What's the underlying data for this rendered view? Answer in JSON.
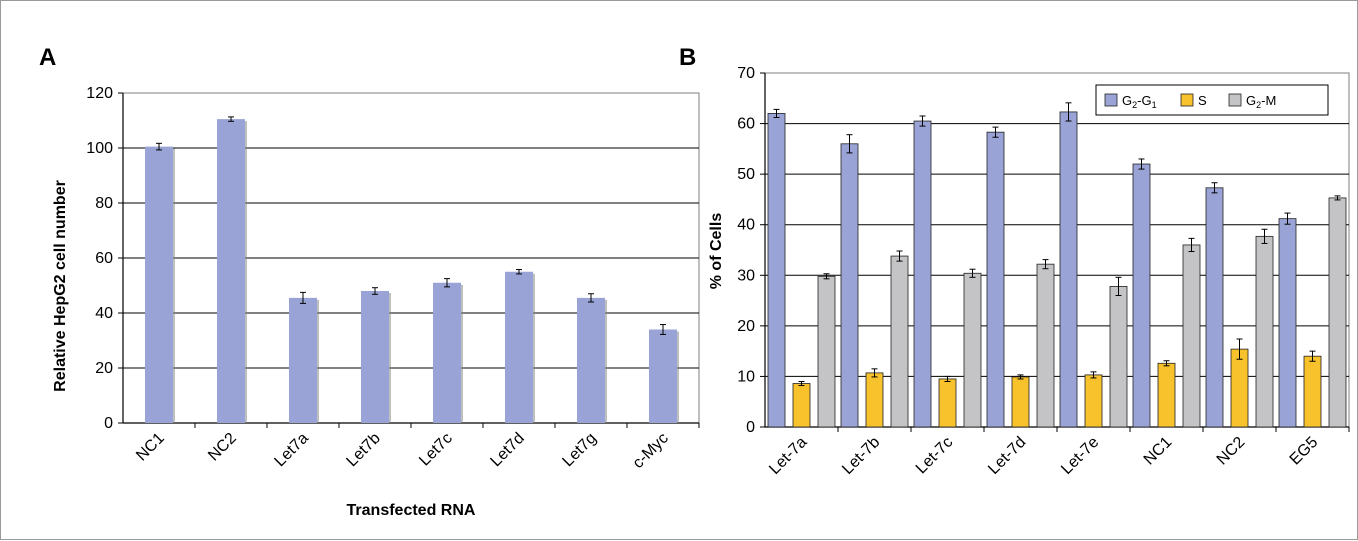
{
  "colors": {
    "g1": "#9aa3d6",
    "s": "#f7c22c",
    "g2m": "#c4c4c6",
    "barA": "#9aa3d6"
  },
  "chart_data": [
    {
      "panel_label": "A",
      "type": "bar",
      "categories": [
        "NC1",
        "NC2",
        "Let7a",
        "Let7b",
        "Let7c",
        "Let7d",
        "Let7g",
        "c-Myc"
      ],
      "values": [
        100.5,
        110.5,
        45.5,
        48,
        51,
        55,
        45.5,
        34
      ],
      "errors": [
        1.2,
        0.8,
        2,
        1.2,
        1.5,
        0.8,
        1.5,
        1.8
      ],
      "title": "",
      "xlabel": "Transfected RNA",
      "ylabel": "Relative HepG2 cell number",
      "ylim": [
        0,
        120
      ],
      "yticks": [
        "0",
        "20",
        "40",
        "60",
        "80",
        "100",
        "120"
      ],
      "grid": true
    },
    {
      "panel_label": "B",
      "type": "bar",
      "categories": [
        "Let-7a",
        "Let-7b",
        "Let-7c",
        "Let-7d",
        "Let-7e",
        "NC1",
        "NC2",
        "EG5"
      ],
      "series": [
        {
          "name": "G₂-G₁",
          "values": [
            62,
            56,
            60.5,
            58.3,
            62.3,
            52,
            47.3,
            41.2
          ],
          "errors": [
            0.8,
            1.8,
            1,
            1,
            1.8,
            1,
            1,
            1.1
          ]
        },
        {
          "name": "S",
          "values": [
            8.6,
            10.7,
            9.5,
            9.9,
            10.3,
            12.6,
            15.4,
            14
          ],
          "errors": [
            0.4,
            0.8,
            0.5,
            0.4,
            0.6,
            0.5,
            2,
            1
          ]
        },
        {
          "name": "G₂-M",
          "values": [
            29.8,
            33.8,
            30.4,
            32.2,
            27.8,
            36,
            37.7,
            45.3
          ],
          "errors": [
            0.5,
            1,
            0.8,
            0.9,
            1.8,
            1.3,
            1.4,
            0.4
          ]
        }
      ],
      "title": "",
      "xlabel": "",
      "ylabel": "% of Cells",
      "ylim": [
        0,
        70
      ],
      "yticks": [
        "0",
        "10",
        "20",
        "30",
        "40",
        "50",
        "60",
        "70"
      ],
      "grid": true,
      "legend": "top-right"
    }
  ]
}
